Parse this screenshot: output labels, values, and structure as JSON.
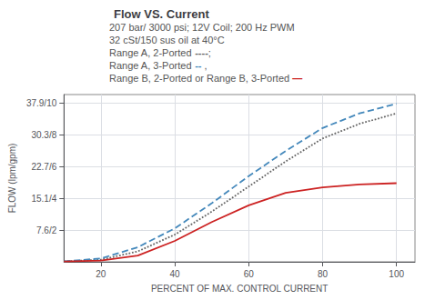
{
  "chart_data": {
    "type": "line",
    "title": "Flow VS. Current",
    "annotations": [
      [
        "207 bar/ 3000 psi; 12V Coil; 200 Hz PWM"
      ],
      [
        "32 cSt/150 sus oil at 40°C"
      ],
      [
        "Range A, 2-Ported ",
        {
          "text": "----",
          "color": "#666666"
        },
        ";"
      ],
      [
        "Range A, 3-Ported ",
        {
          "text": "--",
          "color": "#4488bb"
        },
        " ,"
      ],
      [
        "Range B, 2-Ported or Range B, 3-Ported ",
        {
          "text": "—",
          "color": "#cc2222"
        }
      ]
    ],
    "xlabel": "PERCENT OF MAX. CONTROL CURRENT",
    "ylabel": "FLOW (lpm/gpm)",
    "xlim": [
      10,
      105
    ],
    "ylim": [
      0,
      40
    ],
    "xticks": [
      20,
      40,
      60,
      80,
      100
    ],
    "yticks": [
      {
        "value": 7.6,
        "label": "7.6/2"
      },
      {
        "value": 15.1,
        "label": "15.1/4"
      },
      {
        "value": 22.7,
        "label": "22.7/6"
      },
      {
        "value": 30.3,
        "label": "30.3/8"
      },
      {
        "value": 37.9,
        "label": "37.9/10"
      }
    ],
    "grid": true,
    "x": [
      10,
      20,
      30,
      40,
      50,
      60,
      70,
      80,
      90,
      100
    ],
    "series": [
      {
        "color": "#666666",
        "line_style": "dotted",
        "values": [
          0.1,
          0.5,
          2.5,
          6.5,
          12.0,
          18.0,
          24.0,
          29.5,
          33.0,
          35.5
        ]
      },
      {
        "color": "#4488bb",
        "line_style": "dashed",
        "values": [
          0.1,
          0.8,
          3.5,
          8.0,
          14.0,
          20.5,
          26.5,
          32.0,
          35.5,
          37.8
        ]
      },
      {
        "color": "#cc2222",
        "line_style": "solid",
        "values": [
          0.1,
          0.3,
          1.5,
          5.0,
          9.5,
          13.5,
          16.5,
          17.8,
          18.5,
          18.8
        ]
      }
    ]
  }
}
